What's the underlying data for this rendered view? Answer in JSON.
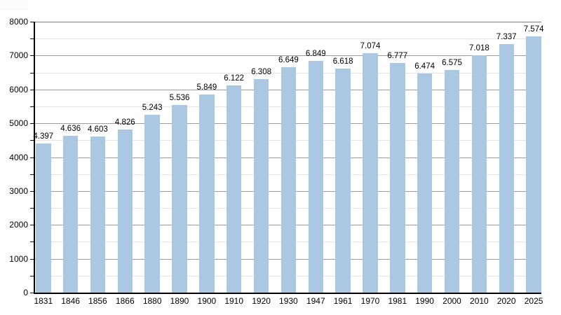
{
  "chart_data": {
    "type": "bar",
    "title": "",
    "xlabel": "",
    "ylabel": "",
    "categories": [
      "1831",
      "1846",
      "1856",
      "1866",
      "1880",
      "1890",
      "1900",
      "1910",
      "1920",
      "1930",
      "1947",
      "1961",
      "1970",
      "1981",
      "1990",
      "2000",
      "2010",
      "2020",
      "2025"
    ],
    "values": [
      4397,
      4636,
      4603,
      4826,
      5243,
      5536,
      5849,
      6122,
      6308,
      6649,
      6849,
      6618,
      7074,
      6777,
      6474,
      6575,
      7018,
      7337,
      7574
    ],
    "value_labels": [
      "4.397",
      "4.636",
      "4.603",
      "4.826",
      "5.243",
      "5.536",
      "5.849",
      "6.122",
      "6.308",
      "6.649",
      "6.849",
      "6.618",
      "7.074",
      "6.777",
      "6.474",
      "6.575",
      "7.018",
      "7.337",
      "7.574"
    ],
    "ylim": [
      0,
      8000
    ],
    "ytick_step": 1000,
    "ytick_labels": [
      "0",
      "1000",
      "2000",
      "3000",
      "4000",
      "5000",
      "6000",
      "7000",
      "8000"
    ],
    "minor_grid_step": 500,
    "grid": "on",
    "legend": "none",
    "colors": {
      "bar_fill": "#abc8e3",
      "major_gridline": "#9c9c9c",
      "minor_gridline": "#e4e4e4",
      "top_gridline": "#7f7f7f",
      "axis_line": "#000000",
      "text": "#000000",
      "background": "#ffffff"
    }
  }
}
